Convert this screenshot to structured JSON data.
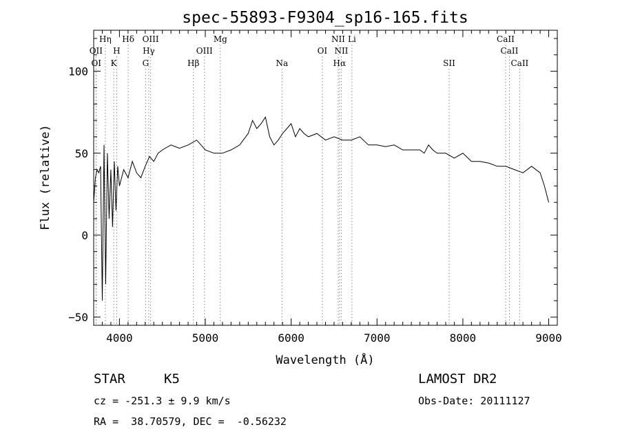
{
  "chart_data": {
    "type": "line",
    "title": "spec-55893-F9304_sp16-165.fits",
    "xlabel": "Wavelength (Å)",
    "ylabel": "Flux (relative)",
    "xlim": [
      3700,
      9100
    ],
    "ylim": [
      -55,
      125
    ],
    "xticks": [
      4000,
      5000,
      6000,
      7000,
      8000,
      9000
    ],
    "yticks": [
      -50,
      0,
      50,
      100
    ],
    "grid": false,
    "line_color": "#000000",
    "marker_color": "#888888",
    "series": [
      {
        "x": [
          3700,
          3720,
          3740,
          3760,
          3780,
          3800,
          3820,
          3840,
          3860,
          3880,
          3900,
          3920,
          3940,
          3960,
          3980,
          4000,
          4050,
          4100,
          4150,
          4200,
          4250,
          4300,
          4350,
          4400,
          4450,
          4500,
          4600,
          4700,
          4800,
          4900,
          5000,
          5100,
          5200,
          5300,
          5400,
          5500,
          5550,
          5600,
          5650,
          5700,
          5750,
          5800,
          5850,
          5900,
          5950,
          6000,
          6050,
          6100,
          6150,
          6200,
          6300,
          6400,
          6500,
          6600,
          6700,
          6800,
          6900,
          7000,
          7100,
          7200,
          7300,
          7400,
          7500,
          7550,
          7600,
          7650,
          7700,
          7800,
          7900,
          8000,
          8100,
          8200,
          8300,
          8400,
          8500,
          8600,
          8700,
          8800,
          8900,
          8950,
          9000
        ],
        "y": [
          20,
          35,
          40,
          38,
          42,
          -40,
          55,
          -30,
          50,
          10,
          40,
          5,
          45,
          15,
          42,
          30,
          40,
          35,
          45,
          38,
          35,
          42,
          48,
          45,
          50,
          52,
          55,
          53,
          55,
          58,
          52,
          50,
          50,
          52,
          55,
          62,
          70,
          65,
          68,
          72,
          60,
          55,
          58,
          62,
          65,
          68,
          60,
          65,
          62,
          60,
          62,
          58,
          60,
          58,
          58,
          60,
          55,
          55,
          54,
          55,
          52,
          52,
          52,
          50,
          55,
          52,
          50,
          50,
          47,
          50,
          45,
          45,
          44,
          42,
          42,
          40,
          38,
          42,
          38,
          30,
          20
        ]
      }
    ],
    "line_markers": [
      {
        "label": "OII",
        "x": 3727,
        "row": 2
      },
      {
        "label": "OI",
        "x": 3730,
        "row": 3
      },
      {
        "label": "Hη",
        "x": 3835,
        "row": 1
      },
      {
        "label": "H",
        "x": 3968,
        "row": 2
      },
      {
        "label": "K",
        "x": 3934,
        "row": 3
      },
      {
        "label": "Hδ",
        "x": 4102,
        "row": 1
      },
      {
        "label": "OIII",
        "x": 4363,
        "row": 1
      },
      {
        "label": "Hγ",
        "x": 4341,
        "row": 2
      },
      {
        "label": "G",
        "x": 4305,
        "row": 3
      },
      {
        "label": "OIII",
        "x": 4990,
        "row": 2
      },
      {
        "label": "Hβ",
        "x": 4861,
        "row": 3
      },
      {
        "label": "Mg",
        "x": 5175,
        "row": 1
      },
      {
        "label": "Na",
        "x": 5893,
        "row": 3
      },
      {
        "label": "OI",
        "x": 6363,
        "row": 2
      },
      {
        "label": "NII",
        "x": 6548,
        "row": 1
      },
      {
        "label": "Li",
        "x": 6708,
        "row": 1
      },
      {
        "label": "NII",
        "x": 6584,
        "row": 2
      },
      {
        "label": "Hα",
        "x": 6563,
        "row": 3
      },
      {
        "label": "SII",
        "x": 7840,
        "row": 3
      },
      {
        "label": "CaII",
        "x": 8498,
        "row": 1
      },
      {
        "label": "CaII",
        "x": 8542,
        "row": 2
      },
      {
        "label": "CaII",
        "x": 8662,
        "row": 3
      }
    ]
  },
  "info": {
    "object_class": "STAR",
    "subclass": "K5",
    "survey": "LAMOST DR2",
    "redshift": "cz = -251.3 ± 9.9 km/s",
    "obs_date": "Obs-Date: 20111127",
    "coords": "RA =  38.70579, DEC =  -0.56232"
  }
}
